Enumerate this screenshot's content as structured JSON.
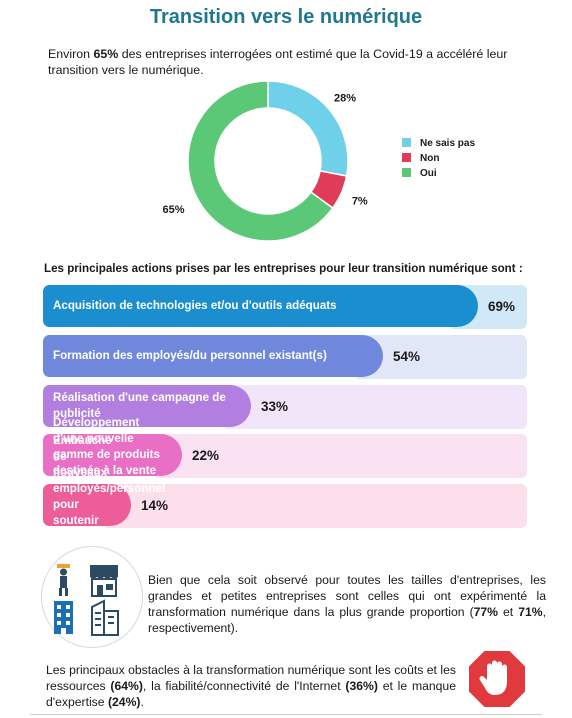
{
  "page": {
    "title": "Transition vers le numérique",
    "intro": {
      "before": "Environ ",
      "highlight": "65%",
      "after": " des entreprises interrogées ont estimé que la Covid-19 a accéléré leur transition vers le numérique."
    },
    "actions_title": "Les principales actions prises par les entreprises pour leur transition numérique sont :",
    "size_paragraph": {
      "text1": "Bien que cela soit observé pour toutes les tailles d'entreprises, les grandes et petites entreprises sont celles qui ont expérimenté la transformation numérique dans la plus grande proportion (",
      "bold1": "77%",
      "text2": " et ",
      "bold2": "71%",
      "text3": ", respectivement)."
    },
    "obstacles_paragraph": {
      "text1": "Les principaux obstacles à la transformation numérique sont les coûts et les ressources ",
      "bold1": "(64%)",
      "text2": ", la fiabilité/connectivité de l'Internet ",
      "bold2": "(36%)",
      "text3": " et le manque d'expertise ",
      "bold3": "(24%)",
      "text4": "."
    },
    "stop_sign": "hand-stop-icon"
  },
  "chart_data": [
    {
      "type": "pie",
      "variant": "donut",
      "categories": [
        "Ne sais pas",
        "Non",
        "Oui"
      ],
      "values": [
        28,
        7,
        65
      ],
      "labels": [
        "28%",
        "7%",
        "65%"
      ],
      "colors": [
        "#6fd0ea",
        "#e03c5a",
        "#5bc877"
      ],
      "legend_position": "right",
      "legend": [
        "Ne sais pas",
        "Non",
        "Oui"
      ]
    },
    {
      "type": "bar",
      "orientation": "horizontal",
      "categories": [
        "Acquisition de technologies et/ou d'outils adéquats",
        "Formation des employés/du personnel existant(s)",
        "Réalisation d'une campagne de publicité",
        "Développement d'une nouvelle gamme de produits destinés à la vente en ligne.",
        "Embauche de nouveaux employés/personnel pour soutenir la transformation numérique"
      ],
      "values": [
        69,
        54,
        33,
        22,
        14
      ],
      "labels": [
        "69%",
        "54%",
        "33%",
        "22%",
        "14%"
      ],
      "colors": [
        "#1b8ed0",
        "#6f88dc",
        "#b27fe0",
        "#e86fc4",
        "#ec5d9a"
      ]
    }
  ]
}
